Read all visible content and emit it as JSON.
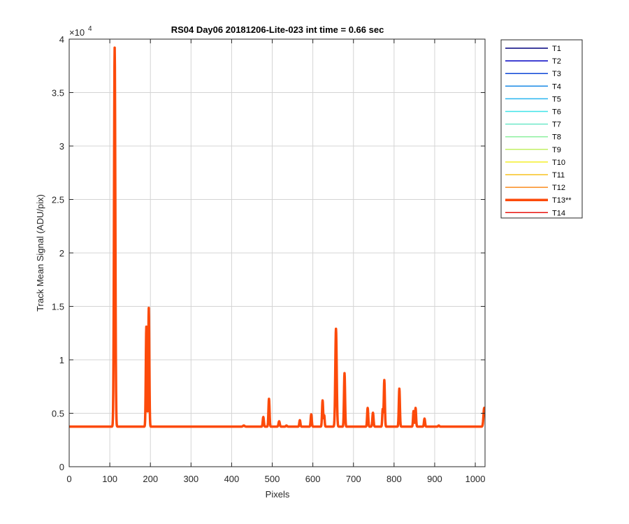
{
  "chart_data": {
    "type": "line",
    "title": "RS04 Day06 20181206-Lite-023 int time = 0.66 sec",
    "xlabel": "Pixels",
    "ylabel": "Track Mean Signal (ADU/pix)",
    "y_exponent_label": "×10",
    "y_exponent_power": "4",
    "xlim": [
      0,
      1024
    ],
    "ylim": [
      0,
      40000
    ],
    "grid": true,
    "legend_placement": "outside-right-top",
    "x_ticks": [
      {
        "value": 0,
        "label": "0"
      },
      {
        "value": 100,
        "label": "100"
      },
      {
        "value": 200,
        "label": "200"
      },
      {
        "value": 300,
        "label": "300"
      },
      {
        "value": 400,
        "label": "400"
      },
      {
        "value": 500,
        "label": "500"
      },
      {
        "value": 600,
        "label": "600"
      },
      {
        "value": 700,
        "label": "700"
      },
      {
        "value": 800,
        "label": "800"
      },
      {
        "value": 900,
        "label": "900"
      },
      {
        "value": 1000,
        "label": "1000"
      }
    ],
    "y_ticks": [
      {
        "value": 0,
        "label": "0"
      },
      {
        "value": 5000,
        "label": "0.5"
      },
      {
        "value": 10000,
        "label": "1"
      },
      {
        "value": 15000,
        "label": "1.5"
      },
      {
        "value": 20000,
        "label": "2"
      },
      {
        "value": 25000,
        "label": "2.5"
      },
      {
        "value": 30000,
        "label": "3"
      },
      {
        "value": 35000,
        "label": "3.5"
      },
      {
        "value": 40000,
        "label": "4"
      }
    ],
    "baseline": 3750,
    "peaks": [
      {
        "x": 112,
        "y": 39200,
        "w": 1.6
      },
      {
        "x": 190,
        "y": 13100,
        "w": 1.3
      },
      {
        "x": 196,
        "y": 14850,
        "w": 1.3
      },
      {
        "x": 430,
        "y": 3850,
        "w": 2
      },
      {
        "x": 478,
        "y": 4650,
        "w": 1.3
      },
      {
        "x": 492,
        "y": 6350,
        "w": 1.3
      },
      {
        "x": 517,
        "y": 4250,
        "w": 1.5
      },
      {
        "x": 535,
        "y": 3850,
        "w": 1.5
      },
      {
        "x": 568,
        "y": 4350,
        "w": 1.3
      },
      {
        "x": 596,
        "y": 4900,
        "w": 1.3
      },
      {
        "x": 624,
        "y": 6200,
        "w": 1.3
      },
      {
        "x": 628,
        "y": 4800,
        "w": 1.1
      },
      {
        "x": 657,
        "y": 12900,
        "w": 1.7
      },
      {
        "x": 678,
        "y": 8750,
        "w": 1.3
      },
      {
        "x": 735,
        "y": 5500,
        "w": 1.3
      },
      {
        "x": 748,
        "y": 5050,
        "w": 1.4
      },
      {
        "x": 772,
        "y": 5350,
        "w": 1.1
      },
      {
        "x": 776,
        "y": 8100,
        "w": 1.3
      },
      {
        "x": 813,
        "y": 7300,
        "w": 1.3
      },
      {
        "x": 848,
        "y": 5200,
        "w": 1.2
      },
      {
        "x": 853,
        "y": 5500,
        "w": 1.2
      },
      {
        "x": 875,
        "y": 4500,
        "w": 1.3
      },
      {
        "x": 910,
        "y": 3850,
        "w": 1.5
      },
      {
        "x": 1022,
        "y": 5500,
        "w": 1.8
      }
    ],
    "series": [
      {
        "name": "T1",
        "color": "#00007f",
        "width": 1.5
      },
      {
        "name": "T2",
        "color": "#0000c4",
        "width": 1.5
      },
      {
        "name": "T3",
        "color": "#0d47d6",
        "width": 1.5
      },
      {
        "name": "T4",
        "color": "#1a8ae6",
        "width": 1.5
      },
      {
        "name": "T5",
        "color": "#2ab6f0",
        "width": 1.5
      },
      {
        "name": "T6",
        "color": "#3fe3e8",
        "width": 1.5
      },
      {
        "name": "T7",
        "color": "#6ee8c8",
        "width": 1.5
      },
      {
        "name": "T8",
        "color": "#8ef0a0",
        "width": 1.5
      },
      {
        "name": "T9",
        "color": "#c2f064",
        "width": 1.5
      },
      {
        "name": "T10",
        "color": "#f5ef2a",
        "width": 1.5
      },
      {
        "name": "T11",
        "color": "#f7c21f",
        "width": 1.5
      },
      {
        "name": "T12",
        "color": "#f98c1e",
        "width": 1.5
      },
      {
        "name": "T13**",
        "color": "#fc4a0a",
        "width": 3.5
      },
      {
        "name": "T14",
        "color": "#e8140e",
        "width": 1.5
      }
    ]
  }
}
